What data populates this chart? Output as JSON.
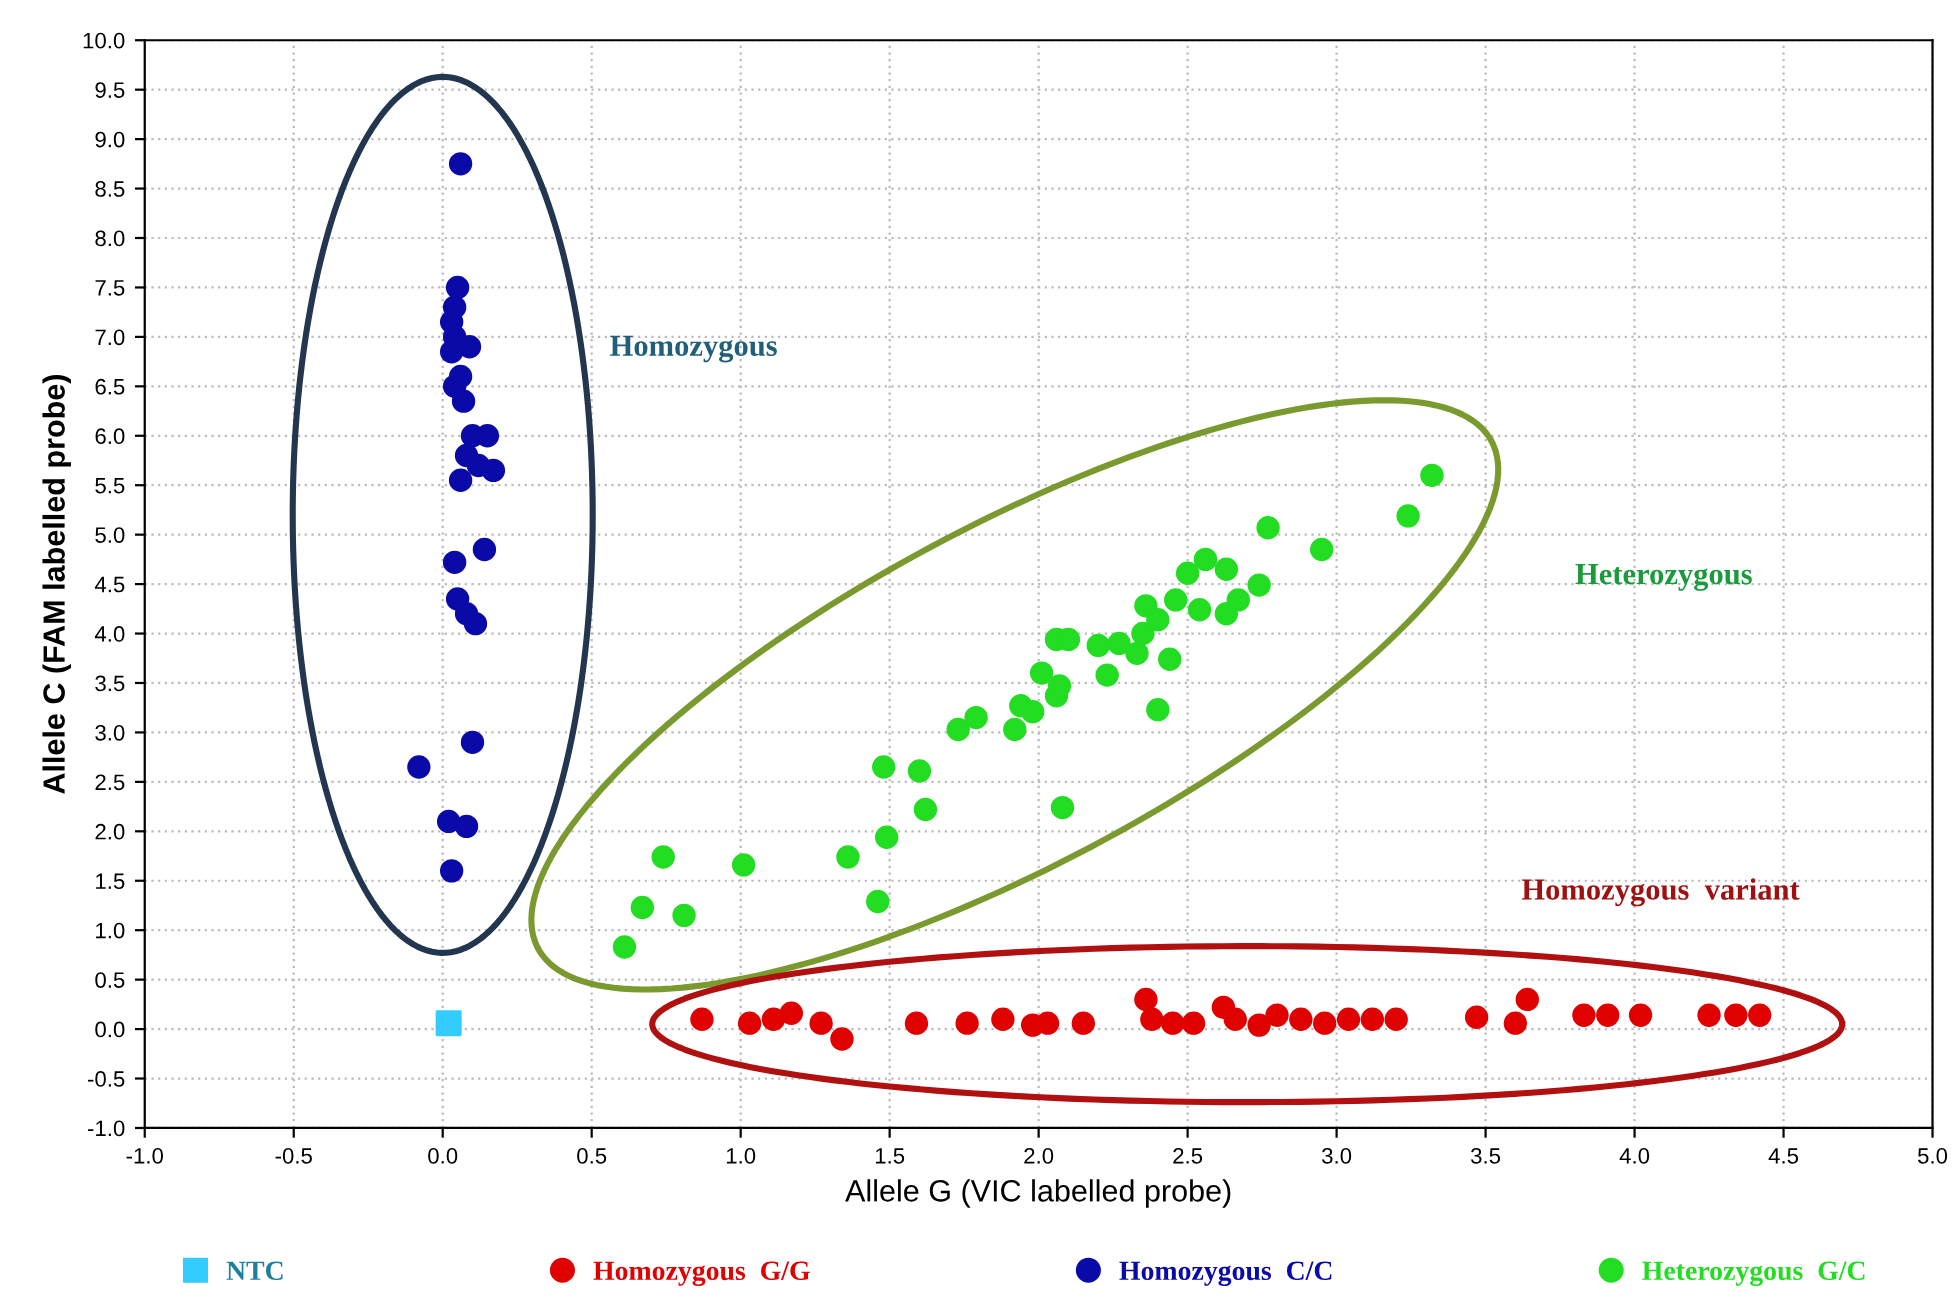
{
  "chart_data": {
    "type": "scatter",
    "xlabel": "Allele G (VIC labelled probe)",
    "ylabel": "Allele C (FAM labelled probe)",
    "xlim": [
      -1.0,
      5.0
    ],
    "ylim": [
      -1.0,
      10.0
    ],
    "xticks": [
      {
        "value": -1.0,
        "label": "-1.0"
      },
      {
        "value": -0.5,
        "label": "-0.5"
      },
      {
        "value": 0,
        "label": "0.0"
      },
      {
        "value": 0.5,
        "label": "0.5"
      },
      {
        "value": 1.0,
        "label": "1.0"
      },
      {
        "value": 1.5,
        "label": "1.5"
      },
      {
        "value": 2.0,
        "label": "2.0"
      },
      {
        "value": 2.5,
        "label": "2.5"
      },
      {
        "value": 3.0,
        "label": "3.0"
      },
      {
        "value": 3.5,
        "label": "3.5"
      },
      {
        "value": 4.0,
        "label": "4.0"
      },
      {
        "value": 4.5,
        "label": "4.5"
      },
      {
        "value": 5.0,
        "label": "5.0"
      }
    ],
    "yticks": [
      {
        "value": -1.0,
        "label": "-1.0"
      },
      {
        "value": -0.5,
        "label": "-0.5"
      },
      {
        "value": 0,
        "label": "0.0"
      },
      {
        "value": 0.5,
        "label": "0.5"
      },
      {
        "value": 1.0,
        "label": "1.0"
      },
      {
        "value": 1.5,
        "label": "1.5"
      },
      {
        "value": 2.0,
        "label": "2.0"
      },
      {
        "value": 2.5,
        "label": "2.5"
      },
      {
        "value": 3.0,
        "label": "3.0"
      },
      {
        "value": 3.5,
        "label": "3.5"
      },
      {
        "value": 4.0,
        "label": "4.0"
      },
      {
        "value": 4.5,
        "label": "4.5"
      },
      {
        "value": 5.0,
        "label": "5.0"
      },
      {
        "value": 5.5,
        "label": "5.5"
      },
      {
        "value": 6.0,
        "label": "6.0"
      },
      {
        "value": 6.5,
        "label": "6.5"
      },
      {
        "value": 7.0,
        "label": "7.0"
      },
      {
        "value": 7.5,
        "label": "7.5"
      },
      {
        "value": 8.0,
        "label": "8.0"
      },
      {
        "value": 8.5,
        "label": "8.5"
      },
      {
        "value": 9.0,
        "label": "9.0"
      },
      {
        "value": 9.5,
        "label": "9.5"
      },
      {
        "value": 10.0,
        "label": "10.0"
      }
    ],
    "grid": true,
    "legend": "bottom",
    "marker": "circle",
    "series": [
      {
        "name": "NTC",
        "color": "#33ccff",
        "marker": "square",
        "x": [
          0.02
        ],
        "values": [
          0.06
        ]
      },
      {
        "name": "Homozygous  G/G",
        "color": "#e00000",
        "x": [
          0.87,
          1.03,
          1.11,
          1.17,
          1.27,
          1.34,
          1.59,
          1.76,
          1.88,
          1.98,
          2.03,
          2.15,
          2.36,
          2.38,
          2.45,
          2.52,
          2.62,
          2.66,
          2.74,
          2.8,
          2.88,
          2.96,
          3.04,
          3.12,
          3.2,
          3.47,
          3.6,
          3.64,
          3.83,
          3.91,
          4.02,
          4.25,
          4.34,
          4.42
        ],
        "values": [
          0.1,
          0.06,
          0.1,
          0.16,
          0.06,
          -0.1,
          0.06,
          0.06,
          0.1,
          0.04,
          0.06,
          0.06,
          0.3,
          0.1,
          0.06,
          0.06,
          0.22,
          0.1,
          0.04,
          0.14,
          0.1,
          0.06,
          0.1,
          0.1,
          0.1,
          0.12,
          0.06,
          0.3,
          0.14,
          0.14,
          0.14,
          0.14,
          0.14,
          0.14
        ]
      },
      {
        "name": "Homozygous  C/C",
        "color": "#0a0aa8",
        "x": [
          0.06,
          0.05,
          0.04,
          0.03,
          0.04,
          0.09,
          0.03,
          0.06,
          0.04,
          0.07,
          0.1,
          0.15,
          0.08,
          0.12,
          0.17,
          0.06,
          0.14,
          0.04,
          0.05,
          0.08,
          0.11,
          0.1,
          -0.08,
          0.02,
          0.08,
          0.03
        ],
        "values": [
          8.75,
          7.5,
          7.3,
          7.15,
          7.0,
          6.9,
          6.85,
          6.6,
          6.5,
          6.35,
          6.0,
          6.0,
          5.8,
          5.7,
          5.65,
          5.55,
          4.85,
          4.72,
          4.35,
          4.2,
          4.1,
          2.9,
          2.65,
          2.1,
          2.05,
          1.6
        ]
      },
      {
        "name": "Heterozygous  G/C",
        "color": "#22dd22",
        "x": [
          0.61,
          0.67,
          0.74,
          0.81,
          1.01,
          1.36,
          1.46,
          1.49,
          1.48,
          1.6,
          1.62,
          1.73,
          1.79,
          1.92,
          1.94,
          1.98,
          2.01,
          2.06,
          2.07,
          2.06,
          2.1,
          2.08,
          2.23,
          2.2,
          2.27,
          2.33,
          2.35,
          2.36,
          2.4,
          2.44,
          2.4,
          2.46,
          2.5,
          2.56,
          2.63,
          2.54,
          2.63,
          2.67,
          2.74,
          2.77,
          2.95,
          3.24,
          3.32
        ],
        "values": [
          0.83,
          1.23,
          1.74,
          1.15,
          1.66,
          1.74,
          1.29,
          1.94,
          2.65,
          2.61,
          2.22,
          3.03,
          3.15,
          3.03,
          3.27,
          3.21,
          3.6,
          3.37,
          3.47,
          3.94,
          3.94,
          2.24,
          3.58,
          3.88,
          3.9,
          3.8,
          4.0,
          4.28,
          4.14,
          3.74,
          3.23,
          4.34,
          4.61,
          4.75,
          4.65,
          4.24,
          4.2,
          4.34,
          4.49,
          5.07,
          4.85,
          5.19,
          5.6
        ]
      }
    ],
    "annotations": [
      "Homozygous",
      "Heterozygous",
      "Homozygous  variant"
    ]
  }
}
